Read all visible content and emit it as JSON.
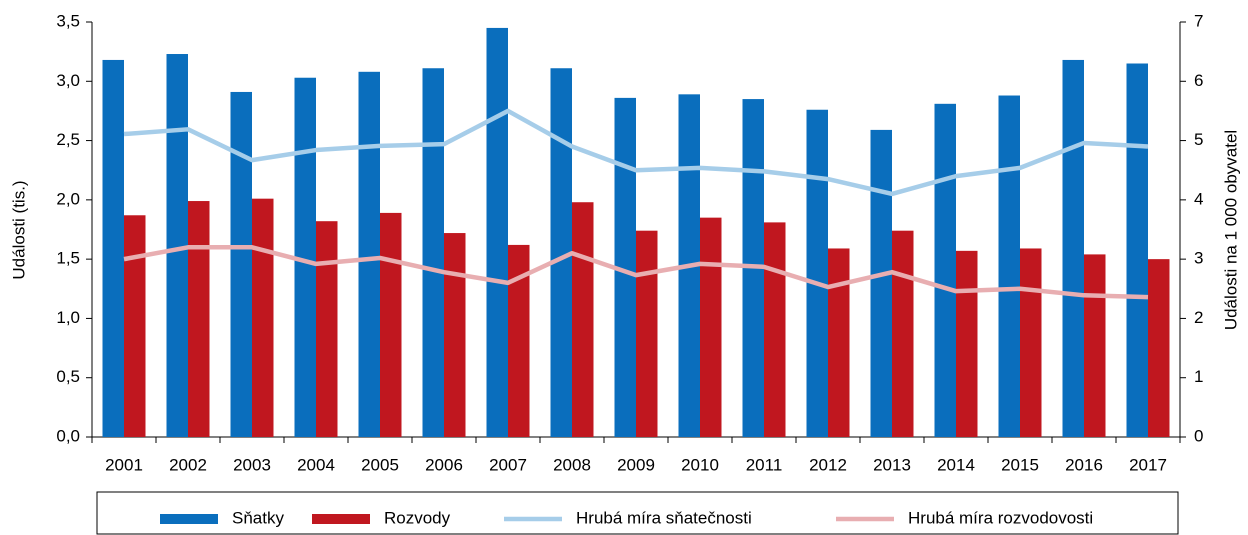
{
  "chart_data": {
    "type": "bar-line",
    "y_label": "Události (tis.)",
    "y2_label": "Události na 1 000 obyvatel",
    "categories": [
      "2001",
      "2002",
      "2003",
      "2004",
      "2005",
      "2006",
      "2007",
      "2008",
      "2009",
      "2010",
      "2011",
      "2012",
      "2013",
      "2014",
      "2015",
      "2016",
      "2017"
    ],
    "series": [
      {
        "name": "Sňatky",
        "type": "bar",
        "color": "#0a6ebd",
        "axis": "y",
        "values": [
          3.18,
          3.23,
          2.91,
          3.03,
          3.08,
          3.11,
          3.45,
          3.11,
          2.86,
          2.89,
          2.85,
          2.76,
          2.59,
          2.81,
          2.88,
          3.18,
          3.15
        ]
      },
      {
        "name": "Rozvody",
        "type": "bar",
        "color": "#c0171f",
        "axis": "y",
        "values": [
          1.87,
          1.99,
          2.01,
          1.82,
          1.89,
          1.72,
          1.62,
          1.98,
          1.74,
          1.85,
          1.81,
          1.59,
          1.74,
          1.57,
          1.59,
          1.54,
          1.5
        ]
      },
      {
        "name": "Hrubá míra sňatečnosti",
        "type": "line",
        "color": "#a6cde9",
        "axis": "y2",
        "values": [
          5.11,
          5.19,
          4.67,
          4.84,
          4.91,
          4.94,
          5.5,
          4.9,
          4.5,
          4.54,
          4.48,
          4.35,
          4.1,
          4.4,
          4.54,
          4.96,
          4.9
        ]
      },
      {
        "name": "Hrubá míra rozvodovosti",
        "type": "line",
        "color": "#e8aeb1",
        "axis": "y2",
        "values": [
          3.0,
          3.2,
          3.2,
          2.92,
          3.02,
          2.78,
          2.6,
          3.1,
          2.73,
          2.92,
          2.87,
          2.53,
          2.78,
          2.46,
          2.5,
          2.39,
          2.36
        ]
      }
    ],
    "ylim": [
      0,
      3.5
    ],
    "yticks": [
      {
        "value": 0,
        "label": "0,0"
      },
      {
        "value": 0.5,
        "label": "0,5"
      },
      {
        "value": 1,
        "label": "1,0"
      },
      {
        "value": 1.5,
        "label": "1,5"
      },
      {
        "value": 2,
        "label": "2,0"
      },
      {
        "value": 2.5,
        "label": "2,5"
      },
      {
        "value": 3,
        "label": "3,0"
      },
      {
        "value": 3.5,
        "label": "3,5"
      }
    ],
    "y2lim": [
      0,
      7
    ],
    "y2ticks": [
      0,
      1,
      2,
      3,
      4,
      5,
      6,
      7
    ],
    "legend": "bottom"
  }
}
